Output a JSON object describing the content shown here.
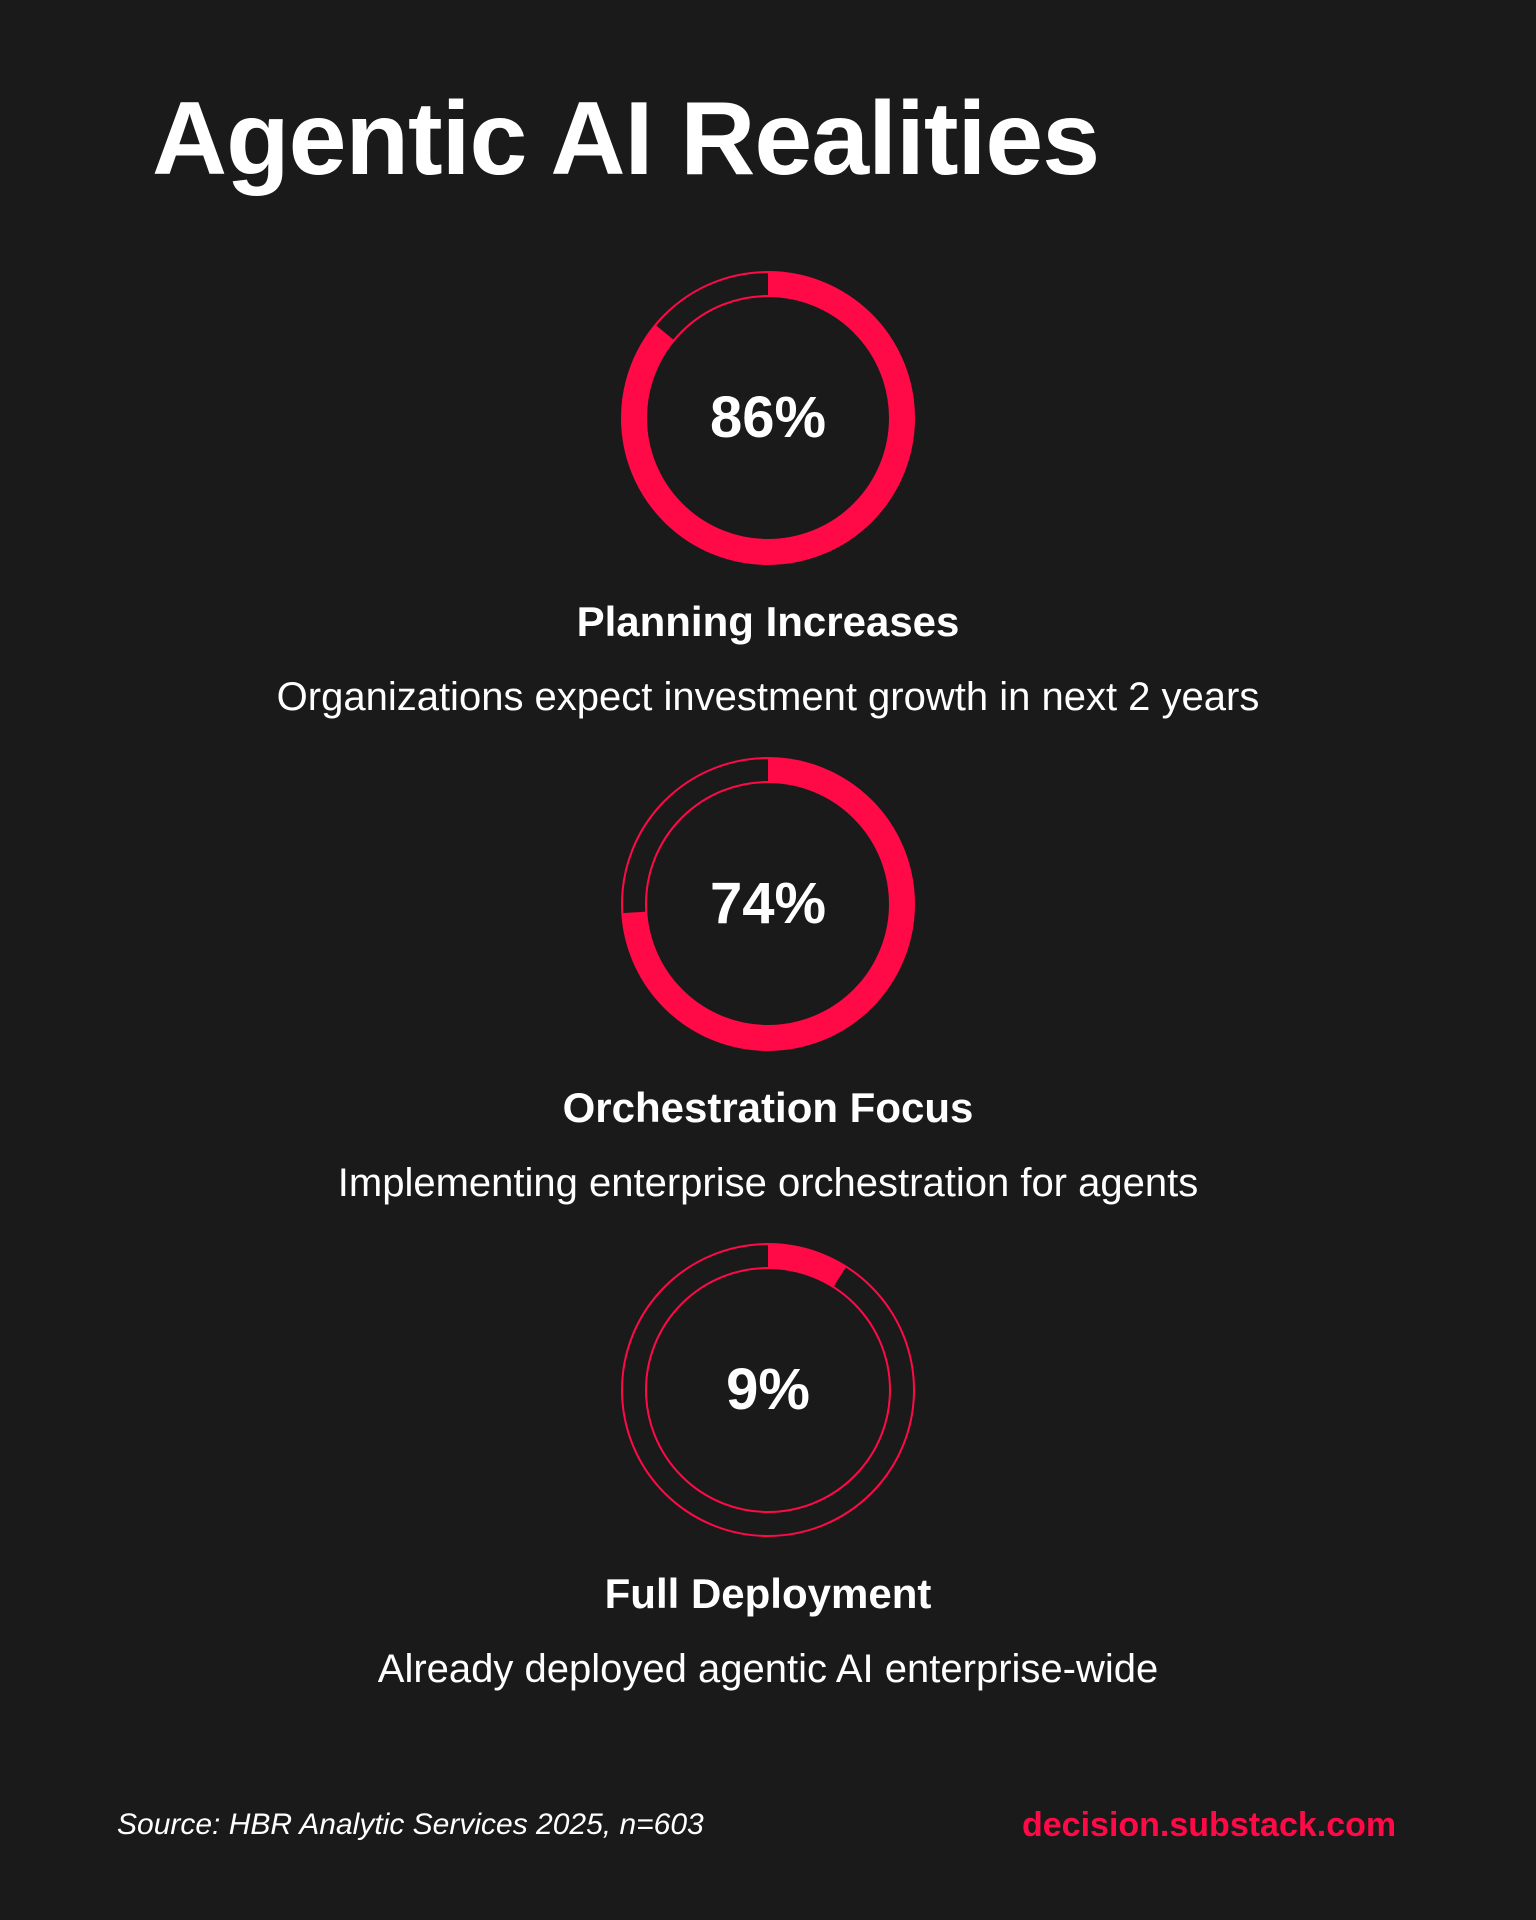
{
  "title": "Agentic AI Realities",
  "colors": {
    "background": "#1b1a1b",
    "accent": "#ff0a47",
    "text": "#ffffff"
  },
  "chart_data": {
    "type": "donut",
    "title": "Agentic AI Realities",
    "items": [
      {
        "value": 86,
        "value_label": "86%",
        "heading": "Planning Increases",
        "description": "Organizations expect investment growth in next 2 years"
      },
      {
        "value": 74,
        "value_label": "74%",
        "heading": "Orchestration Focus",
        "description": "Implementing enterprise orchestration for agents"
      },
      {
        "value": 9,
        "value_label": "9%",
        "heading": "Full Deployment",
        "description": "Already deployed agentic AI enterprise-wide"
      }
    ]
  },
  "footer": {
    "source": "Source: HBR Analytic Services 2025, n=603",
    "site": "decision.substack.com"
  }
}
